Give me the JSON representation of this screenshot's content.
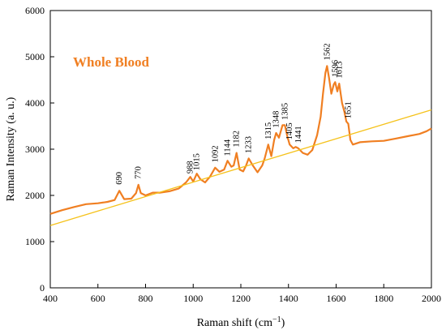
{
  "chart_data": {
    "type": "line",
    "title": "",
    "annotation_title": "Whole Blood",
    "xlabel": "Raman shift (cm",
    "xlabel_sup": "−1",
    "xlabel_close": ")",
    "ylabel": "Raman Intensity (a. u.)",
    "xlim": [
      400,
      2000
    ],
    "ylim": [
      0,
      6000
    ],
    "xticks": [
      400,
      600,
      800,
      1000,
      1200,
      1400,
      1600,
      1800,
      2000
    ],
    "yticks": [
      0,
      1000,
      2000,
      3000,
      4000,
      5000,
      6000
    ],
    "grid": false,
    "legend": "none",
    "colors": {
      "spectrum": "#f07f22",
      "baseline": "#f5c21b",
      "title": "#f07f22"
    },
    "series": [
      {
        "role": "spectrum",
        "x": [
          400,
          450,
          500,
          550,
          600,
          640,
          670,
          690,
          710,
          740,
          760,
          770,
          780,
          800,
          830,
          860,
          900,
          940,
          970,
          988,
          1000,
          1015,
          1030,
          1050,
          1070,
          1092,
          1110,
          1130,
          1144,
          1160,
          1170,
          1182,
          1195,
          1210,
          1222,
          1233,
          1250,
          1270,
          1290,
          1300,
          1315,
          1328,
          1340,
          1348,
          1360,
          1375,
          1385,
          1395,
          1405,
          1420,
          1430,
          1441,
          1460,
          1480,
          1500,
          1520,
          1535,
          1545,
          1555,
          1562,
          1570,
          1580,
          1590,
          1596,
          1605,
          1613,
          1625,
          1635,
          1643,
          1651,
          1660,
          1670,
          1700,
          1750,
          1800,
          1850,
          1900,
          1950,
          1980,
          2000
        ],
        "y": [
          1600,
          1680,
          1750,
          1810,
          1830,
          1860,
          1900,
          2100,
          1920,
          1930,
          2050,
          2230,
          2050,
          2000,
          2060,
          2060,
          2090,
          2150,
          2280,
          2400,
          2300,
          2470,
          2350,
          2280,
          2400,
          2600,
          2510,
          2560,
          2750,
          2620,
          2650,
          2920,
          2560,
          2520,
          2650,
          2800,
          2650,
          2500,
          2650,
          2800,
          3100,
          2850,
          3200,
          3350,
          3250,
          3520,
          3520,
          3280,
          3100,
          3020,
          3050,
          3020,
          2920,
          2880,
          2980,
          3300,
          3700,
          4200,
          4650,
          4800,
          4550,
          4200,
          4400,
          4450,
          4250,
          4420,
          4000,
          3800,
          3600,
          3550,
          3200,
          3100,
          3150,
          3170,
          3180,
          3230,
          3280,
          3330,
          3390,
          3450
        ]
      },
      {
        "role": "baseline",
        "x": [
          400,
          2000
        ],
        "y": [
          1350,
          3850
        ]
      }
    ],
    "peak_labels": [
      {
        "x": 690,
        "y": 2180,
        "text": "690"
      },
      {
        "x": 770,
        "y": 2300,
        "text": "770"
      },
      {
        "x": 988,
        "y": 2420,
        "text": "988"
      },
      {
        "x": 1015,
        "y": 2490,
        "text": "1015"
      },
      {
        "x": 1092,
        "y": 2660,
        "text": "1092"
      },
      {
        "x": 1144,
        "y": 2800,
        "text": "1144"
      },
      {
        "x": 1182,
        "y": 2990,
        "text": "1182"
      },
      {
        "x": 1233,
        "y": 2860,
        "text": "1233"
      },
      {
        "x": 1315,
        "y": 3160,
        "text": "1315"
      },
      {
        "x": 1348,
        "y": 3410,
        "text": "1348"
      },
      {
        "x": 1385,
        "y": 3580,
        "text": "1385"
      },
      {
        "x": 1405,
        "y": 3150,
        "text": "1405"
      },
      {
        "x": 1441,
        "y": 3080,
        "text": "1441"
      },
      {
        "x": 1562,
        "y": 4870,
        "text": "1562"
      },
      {
        "x": 1596,
        "y": 4510,
        "text": "1596"
      },
      {
        "x": 1613,
        "y": 4480,
        "text": "1613"
      },
      {
        "x": 1651,
        "y": 3610,
        "text": "1651"
      }
    ]
  }
}
